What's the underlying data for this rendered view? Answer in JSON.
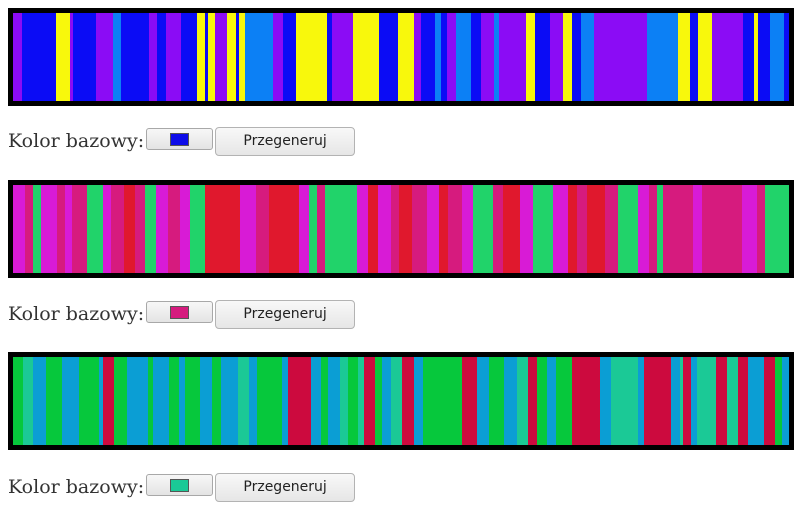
{
  "sections": [
    {
      "label": "Kolor bazowy:",
      "base_color": "#0d0ce8",
      "button_label": "Przegeneruj",
      "stripes": [
        [
          "#8b0cf5",
          9
        ],
        [
          "#0b0cf5",
          32
        ],
        [
          "#f8f80c",
          14
        ],
        [
          "#8b0cf5",
          3
        ],
        [
          "#0b0cf5",
          22
        ],
        [
          "#8b0cf5",
          16
        ],
        [
          "#0c80f5",
          8
        ],
        [
          "#0b0cf5",
          26
        ],
        [
          "#8b0cf5",
          8
        ],
        [
          "#0b0cf5",
          9
        ],
        [
          "#8b0cf5",
          14
        ],
        [
          "#0b0cf5",
          15
        ],
        [
          "#f8f80c",
          8
        ],
        [
          "#0b0cf5",
          3
        ],
        [
          "#f8f80c",
          7
        ],
        [
          "#8b0cf5",
          11
        ],
        [
          "#f8f80c",
          9
        ],
        [
          "#0b0cf5",
          3
        ],
        [
          "#f8f80c",
          5
        ],
        [
          "#0c80f5",
          27
        ],
        [
          "#8b0cf5",
          10
        ],
        [
          "#0b0cf5",
          12
        ],
        [
          "#f8f80c",
          30
        ],
        [
          "#0b0cf5",
          5
        ],
        [
          "#8b0cf5",
          20
        ],
        [
          "#f8f80c",
          25
        ],
        [
          "#0b0cf5",
          18
        ],
        [
          "#f8f80c",
          15
        ],
        [
          "#8b0cf5",
          7
        ],
        [
          "#0b0cf5",
          14
        ],
        [
          "#0c80f5",
          5
        ],
        [
          "#0b0cf5",
          6
        ],
        [
          "#8b0cf5",
          9
        ],
        [
          "#0c80f5",
          14
        ],
        [
          "#0b0cf5",
          10
        ],
        [
          "#8b0cf5",
          12
        ],
        [
          "#0c80f5",
          5
        ],
        [
          "#8b0cf5",
          26
        ],
        [
          "#f8f80c",
          8
        ],
        [
          "#0b0cf5",
          15
        ],
        [
          "#8b0cf5",
          12
        ],
        [
          "#f8f80c",
          9
        ],
        [
          "#0b0cf5",
          9
        ],
        [
          "#0c80f5",
          12
        ],
        [
          "#8b0cf5",
          14
        ],
        [
          "#8b0cf5",
          37
        ],
        [
          "#0c80f5",
          30
        ],
        [
          "#f8f80c",
          11
        ],
        [
          "#0b0cf5",
          8
        ],
        [
          "#f8f80c",
          13
        ],
        [
          "#8b0cf5",
          30
        ],
        [
          "#0b0cf5",
          10
        ],
        [
          "#f8f80c",
          4
        ],
        [
          "#0b0cf5",
          12
        ],
        [
          "#0c80f5",
          13
        ],
        [
          "#0b0cf5",
          5
        ]
      ]
    },
    {
      "label": "Kolor bazowy:",
      "base_color": "#d51b7e",
      "button_label": "Przegeneruj",
      "stripes": [
        [
          "#d81bd6",
          11
        ],
        [
          "#d61b7e",
          7
        ],
        [
          "#21d36a",
          8
        ],
        [
          "#d81bd6",
          14
        ],
        [
          "#d61b7e",
          8
        ],
        [
          "#d81bd6",
          6
        ],
        [
          "#d61b7e",
          14
        ],
        [
          "#21d36a",
          15
        ],
        [
          "#d81bd6",
          7
        ],
        [
          "#d61b7e",
          12
        ],
        [
          "#e0182d",
          10
        ],
        [
          "#d61b7e",
          9
        ],
        [
          "#21d36a",
          10
        ],
        [
          "#d81bd6",
          11
        ],
        [
          "#d61b7e",
          11
        ],
        [
          "#d81bd6",
          10
        ],
        [
          "#21d36a",
          13
        ],
        [
          "#e0182d",
          33
        ],
        [
          "#d81bd6",
          14
        ],
        [
          "#d61b7e",
          12
        ],
        [
          "#e0182d",
          28
        ],
        [
          "#d81bd6",
          9
        ],
        [
          "#21d36a",
          7
        ],
        [
          "#d61b7e",
          8
        ],
        [
          "#21d36a",
          29
        ],
        [
          "#d81bd6",
          10
        ],
        [
          "#e0182d",
          9
        ],
        [
          "#d81bd6",
          12
        ],
        [
          "#d61b7e",
          8
        ],
        [
          "#e0182d",
          12
        ],
        [
          "#d61b7e",
          13
        ],
        [
          "#d81bd6",
          11
        ],
        [
          "#e0182d",
          9
        ],
        [
          "#d61b7e",
          13
        ],
        [
          "#d81bd6",
          10
        ],
        [
          "#21d36a",
          18
        ],
        [
          "#d61b7e",
          9
        ],
        [
          "#e0182d",
          16
        ],
        [
          "#d81bd6",
          12
        ],
        [
          "#21d36a",
          18
        ],
        [
          "#d81bd6",
          14
        ],
        [
          "#e0182d",
          8
        ],
        [
          "#d61b7e",
          9
        ],
        [
          "#e0182d",
          17
        ],
        [
          "#d61b7e",
          12
        ],
        [
          "#21d36a",
          18
        ],
        [
          "#d81bd6",
          10
        ],
        [
          "#d61b7e",
          8
        ],
        [
          "#21d36a",
          5
        ],
        [
          "#d61b7e",
          28
        ],
        [
          "#d81bd6",
          8
        ],
        [
          "#d61b7e",
          37
        ],
        [
          "#d81bd6",
          14
        ],
        [
          "#d61b7e",
          7
        ],
        [
          "#21d36a",
          22
        ]
      ]
    },
    {
      "label": "Kolor bazowy:",
      "base_color": "#1ac996",
      "button_label": "Przegeneruj",
      "stripes": [
        [
          "#06c83c",
          9
        ],
        [
          "#1bc996",
          9
        ],
        [
          "#0b9ed4",
          11
        ],
        [
          "#06c83c",
          14
        ],
        [
          "#0b9ed4",
          15
        ],
        [
          "#06c83c",
          18
        ],
        [
          "#0b9ed4",
          3
        ],
        [
          "#cc0a3e",
          10
        ],
        [
          "#06c83c",
          11
        ],
        [
          "#0b9ed4",
          19
        ],
        [
          "#06c83c",
          4
        ],
        [
          "#0b9ed4",
          14
        ],
        [
          "#06c83c",
          9
        ],
        [
          "#0b9ed4",
          5
        ],
        [
          "#06c83c",
          14
        ],
        [
          "#0b9ed4",
          10
        ],
        [
          "#06c83c",
          8
        ],
        [
          "#0b9ed4",
          15
        ],
        [
          "#1bc996",
          10
        ],
        [
          "#0b9ed4",
          7
        ],
        [
          "#06c83c",
          22
        ],
        [
          "#0b9ed4",
          5
        ],
        [
          "#cc0a3e",
          20
        ],
        [
          "#0b9ed4",
          9
        ],
        [
          "#06c83c",
          6
        ],
        [
          "#0b9ed4",
          11
        ],
        [
          "#1bc996",
          7
        ],
        [
          "#06c83c",
          9
        ],
        [
          "#1bc996",
          5
        ],
        [
          "#cc0a3e",
          10
        ],
        [
          "#06c83c",
          6
        ],
        [
          "#0b9ed4",
          8
        ],
        [
          "#1bc996",
          9
        ],
        [
          "#cc0a3e",
          11
        ],
        [
          "#0b9ed4",
          8
        ],
        [
          "#06c83c",
          34
        ],
        [
          "#cc0a3e",
          13
        ],
        [
          "#0b9ed4",
          11
        ],
        [
          "#06c83c",
          13
        ],
        [
          "#0b9ed4",
          12
        ],
        [
          "#1bc996",
          9
        ],
        [
          "#cc0a3e",
          8
        ],
        [
          "#06c83c",
          9
        ],
        [
          "#0b9ed4",
          8
        ],
        [
          "#06c83c",
          14
        ],
        [
          "#cc0a3e",
          25
        ],
        [
          "#0b9ed4",
          9
        ],
        [
          "#1bc996",
          24
        ],
        [
          "#0b9ed4",
          5
        ],
        [
          "#cc0a3e",
          24
        ],
        [
          "#0b9ed4",
          8
        ],
        [
          "#1bc996",
          3
        ],
        [
          "#cc0a3e",
          7
        ],
        [
          "#0b9ed4",
          5
        ],
        [
          "#1bc996",
          17
        ],
        [
          "#cc0a3e",
          9
        ],
        [
          "#1bc996",
          10
        ],
        [
          "#cc0a3e",
          9
        ],
        [
          "#0b9ed4",
          14
        ],
        [
          "#cc0a3e",
          10
        ],
        [
          "#06c83c",
          6
        ],
        [
          "#0b9ed4",
          6
        ]
      ]
    }
  ]
}
